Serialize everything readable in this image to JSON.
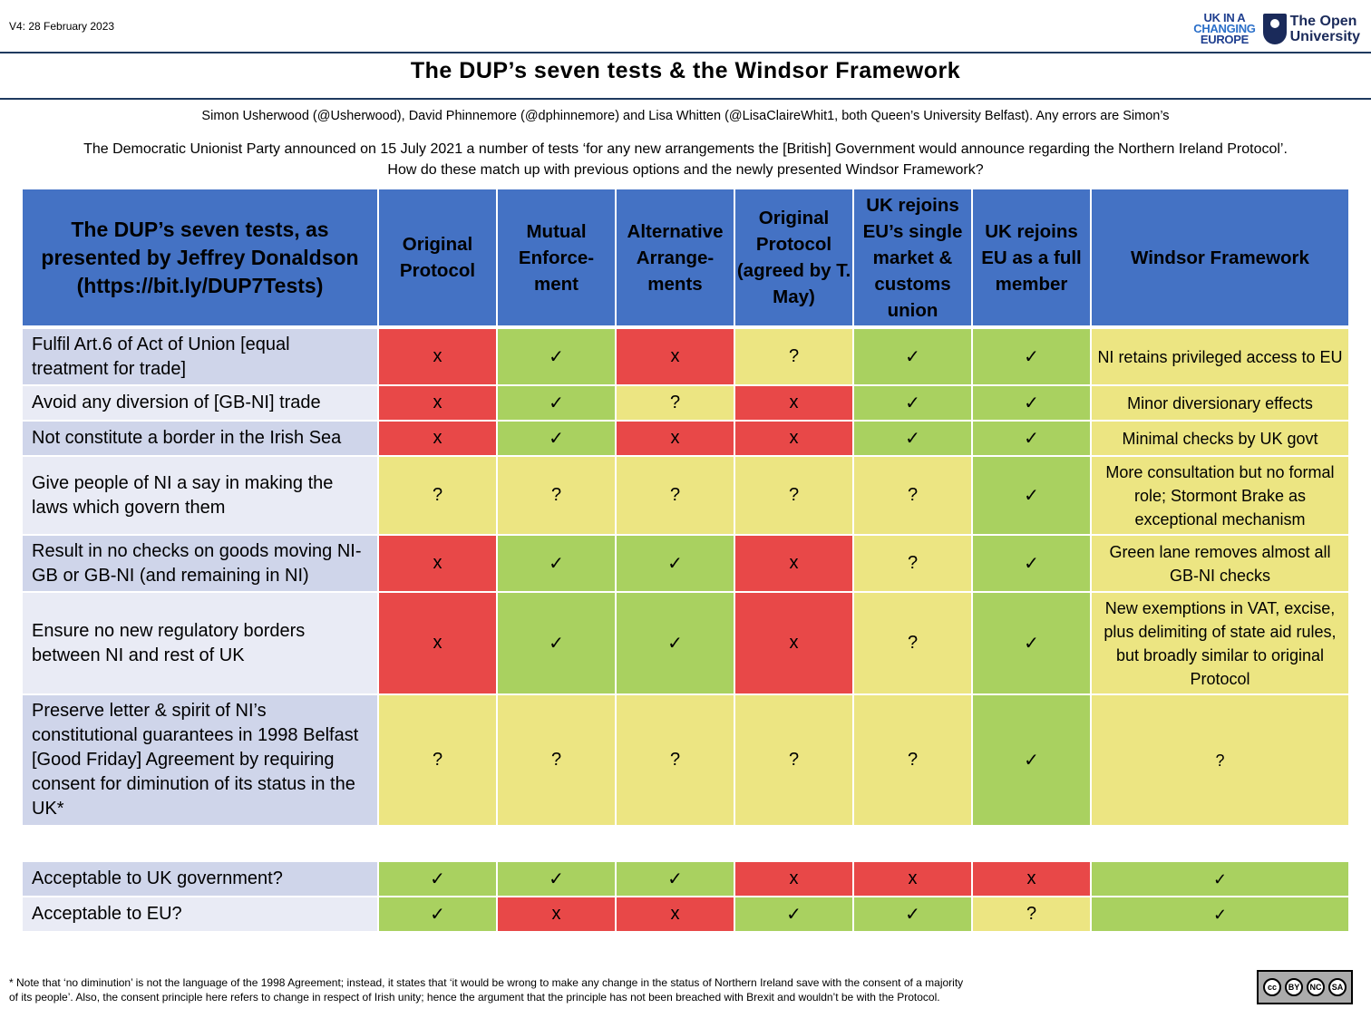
{
  "version": "V4: 28 February 2023",
  "logos": {
    "ukice": [
      "UK IN A",
      "CHANGING",
      "EUROPE"
    ],
    "ou": [
      "The Open",
      "University"
    ]
  },
  "title": "The DUP’s seven tests & the Windsor Framework",
  "authors": "Simon Usherwood (@Usherwood), David Phinnemore (@dphinnemore) and Lisa Whitten (@LisaClaireWhit1, both Queen’s University Belfast). Any errors are Simon’s",
  "intro": [
    "The Democratic Unionist Party announced on 15 July 2021 a number of tests ‘for any new arrangements the [British] Government would announce regarding the Northern Ireland Protocol’.",
    "How do these match up with previous options and the newly presented Windsor Framework?"
  ],
  "colors": {
    "green": "#a9d160",
    "red": "#e84848",
    "yellow": "#ece582",
    "header": "#4472c4"
  },
  "marks": {
    "G": "✓",
    "R": "x",
    "Y": "?"
  },
  "headers": [
    "The DUP’s seven tests, as presented by Jeffrey Donaldson (https://bit.ly/DUP7Tests)",
    "Original Protocol",
    "Mutual Enforce-ment",
    "Alternative Arrange-ments",
    "Original Protocol (agreed by T. May)",
    "UK rejoins EU’s single market & customs union",
    "UK rejoins EU as a full member",
    "Windsor Framework"
  ],
  "rows": [
    {
      "label": "Fulfil Art.6 of Act of Union [equal treatment for trade]",
      "cells": [
        "R",
        "G",
        "R",
        "Y",
        "G",
        "G"
      ],
      "windsor": "NI  retains privileged access to EU",
      "windsor_color": "Y"
    },
    {
      "label": "Avoid any diversion of [GB-NI] trade",
      "cells": [
        "R",
        "G",
        "Y",
        "R",
        "G",
        "G"
      ],
      "windsor": "Minor diversionary effects",
      "windsor_color": "Y"
    },
    {
      "label": "Not constitute a border in the Irish Sea",
      "cells": [
        "R",
        "G",
        "R",
        "R",
        "G",
        "G"
      ],
      "windsor": "Minimal checks by UK govt",
      "windsor_color": "Y"
    },
    {
      "label": "Give people of NI a say in making the laws which govern them",
      "cells": [
        "Y",
        "Y",
        "Y",
        "Y",
        "Y",
        "G"
      ],
      "windsor": "More consultation but no formal role; Stormont Brake as exceptional mechanism",
      "windsor_color": "Y"
    },
    {
      "label": "Result in no checks on goods moving NI-GB or GB-NI (and remaining in NI)",
      "cells": [
        "R",
        "G",
        "G",
        "R",
        "Y",
        "G"
      ],
      "windsor": "Green lane removes almost all GB-NI checks",
      "windsor_color": "Y"
    },
    {
      "label": "Ensure no new regulatory borders between NI and rest of UK",
      "cells": [
        "R",
        "G",
        "G",
        "R",
        "Y",
        "G"
      ],
      "windsor": "New exemptions in VAT, excise, plus delimiting of state aid rules, but broadly similar to original Protocol",
      "windsor_color": "Y"
    },
    {
      "label": "Preserve letter & spirit of NI’s constitutional guarantees in 1998 Belfast [Good Friday] Agreement by requiring consent for diminution of its status in the UK*",
      "cells": [
        "Y",
        "Y",
        "Y",
        "Y",
        "Y",
        "G"
      ],
      "windsor": "?",
      "windsor_color": "Y"
    }
  ],
  "bottom_rows": [
    {
      "label": "Acceptable to UK government?",
      "cells": [
        "G",
        "G",
        "G",
        "R",
        "R",
        "R"
      ],
      "windsor": "✓",
      "windsor_color": "G"
    },
    {
      "label": "Acceptable to EU?",
      "cells": [
        "G",
        "R",
        "R",
        "G",
        "G",
        "Y"
      ],
      "windsor": "✓",
      "windsor_color": "G"
    }
  ],
  "footnote": [
    "* Note that ‘no diminution’ is not the language of the 1998 Agreement; instead, it states that ‘it would be wrong to make any change in the status of Northern Ireland save with the consent of a majority",
    "of its people’. Also, the consent principle here refers to change in respect of Irish unity; hence the argument that the principle has not been breached with Brexit and wouldn’t be with the Protocol."
  ],
  "license": [
    "cc",
    "BY",
    "NC",
    "SA"
  ]
}
